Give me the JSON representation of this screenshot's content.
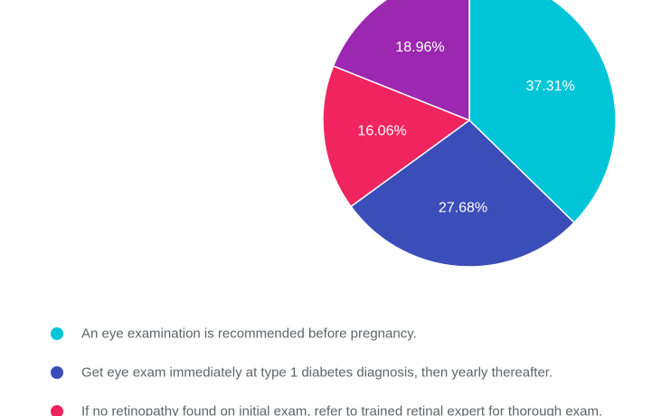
{
  "chart_data": {
    "type": "pie",
    "categories": [
      "An eye examination is recommended before pregnancy.",
      "Get eye exam immediately at type 1 diabetes diagnosis, then yearly thereafter.",
      "If no retinopathy found on initial exam, refer to trained retinal expert for thorough exam.",
      ""
    ],
    "values": [
      37.31,
      27.68,
      16.06,
      18.96
    ],
    "labels": [
      "37.31%",
      "27.68%",
      "16.06%",
      "18.96%"
    ],
    "colors": [
      "#00c5d9",
      "#3b4db8",
      "#f0245f",
      "#9c27b0"
    ],
    "legend_position": "bottom"
  }
}
